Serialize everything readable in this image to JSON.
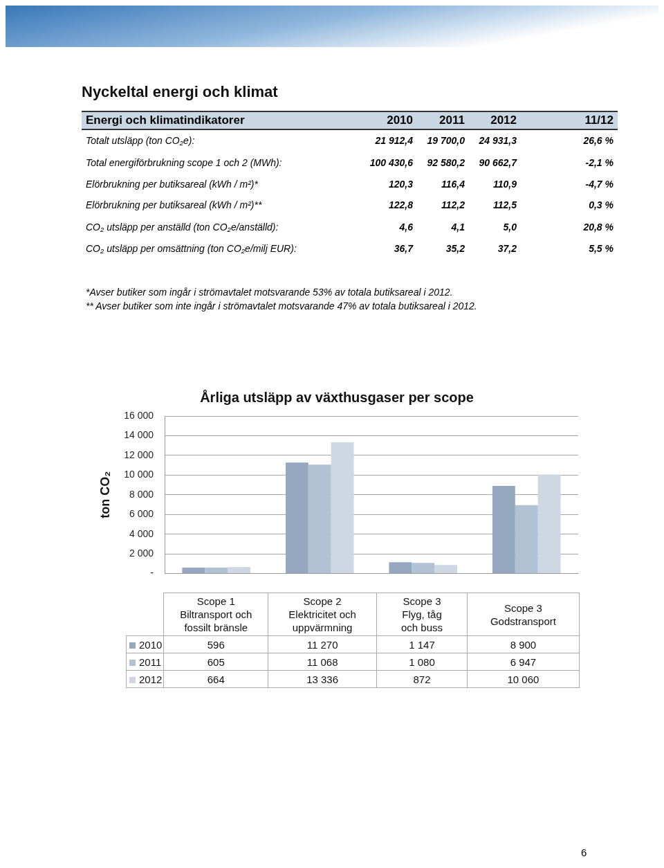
{
  "chart_data": [
    {
      "type": "other",
      "title": "Nyckeltal energi och klimat",
      "subtitle": "Energi och klimatindikatorer",
      "categories": [
        "2010",
        "2011",
        "2012",
        "11/12"
      ],
      "y_categories": [
        "Totalt utsläpp (ton CO₂e):",
        "Total energiförbrukning scope 1 och 2 (MWh):",
        "Elörbrukning per butiksareal (kWh / m²)*",
        "Elörbrukning per butiksareal (kWh / m²)**",
        "CO₂ utsläpp per anställd (ton CO₂e/anställd):",
        "CO₂ utsläpp per omsättning (ton CO₂e/milj EUR):"
      ],
      "cell_labels": [
        [
          "21 912,4",
          "19 700,0",
          "24 931,3",
          "26,6 %"
        ],
        [
          "100 430,6",
          "92 580,2",
          "90 662,7",
          "-2,1 %"
        ],
        [
          "120,3",
          "116,4",
          "110,9",
          "-4,7 %"
        ],
        [
          "122,8",
          "112,2",
          "112,5",
          "0,3 %"
        ],
        [
          "4,6",
          "4,1",
          "5,0",
          "20,8 %"
        ],
        [
          "36,7",
          "35,2",
          "37,2",
          "5,5 %"
        ]
      ],
      "annotations": [
        "*Avser butiker som ingår i strömavtalet motsvarande 53% av totala butiksareal i 2012.",
        "** Avser butiker som inte ingår i strömavtalet motsvarande 47% av totala butiksareal i 2012."
      ]
    },
    {
      "type": "bar",
      "title": "Årliga utsläpp av växthusgaser per scope",
      "ylabel": "ton CO₂",
      "categories": [
        "Scope 1 Biltransport och fossilt bränsle",
        "Scope 2 Elektricitet och uppvärmning",
        "Scope 3 Flyg, tåg och buss",
        "Scope 3 Godstransport"
      ],
      "series": [
        {
          "name": "2010",
          "color": "#94a9bf",
          "values": [
            596,
            11270,
            1147,
            8900
          ]
        },
        {
          "name": "2011",
          "color": "#b0c2d4",
          "values": [
            605,
            11068,
            1080,
            6947
          ]
        },
        {
          "name": "2012",
          "color": "#cdd8e3",
          "values": [
            664,
            13336,
            872,
            10060
          ]
        }
      ],
      "ylim": [
        0,
        16000
      ],
      "yticks": [
        {
          "value": 0,
          "label": "-"
        },
        {
          "value": 2000,
          "label": "2 000"
        },
        {
          "value": 4000,
          "label": "4 000"
        },
        {
          "value": 6000,
          "label": "6 000"
        },
        {
          "value": 8000,
          "label": "8 000"
        },
        {
          "value": 10000,
          "label": "10 000"
        },
        {
          "value": 12000,
          "label": "12 000"
        },
        {
          "value": 14000,
          "label": "14 000"
        },
        {
          "value": 16000,
          "label": "16 000"
        }
      ],
      "grid": "y",
      "legend": "bottom left",
      "data_labels": true,
      "annotations": [
        "6"
      ]
    }
  ]
}
